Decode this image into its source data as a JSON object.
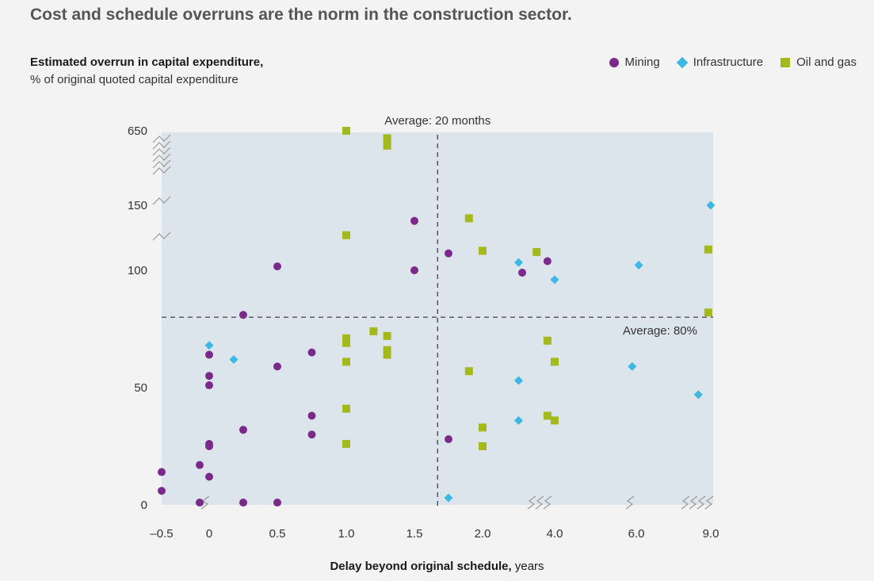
{
  "headline": "Cost and schedule overruns are the norm in the construction sector.",
  "chart_data": {
    "type": "scatter",
    "ylabel": "Estimated overrun in capital expenditure,",
    "ylabel_sub": "% of original quoted capital expenditure",
    "xlabel_bold": "Delay beyond original schedule,",
    "xlabel_unit": " years",
    "x_ticks": [
      "–0.5",
      "0",
      "0.5",
      "1.0",
      "1.5",
      "2.0",
      "4.0",
      "6.0",
      "9.0"
    ],
    "y_ticks": [
      "0",
      "50",
      "100",
      "150",
      "650"
    ],
    "x_axis": "broken scale: –0.5 to 2.0 linear, then breaks before 4.0, 6.0 and 9.0",
    "y_axis": "broken scale: 0 to 100 linear, then breaks before 150 and 650",
    "legend_position": "top-right",
    "average_x_label": "Average: 20 months",
    "average_x_years": 1.67,
    "average_y_label": "Average: 80%",
    "average_y_pct": 80,
    "series": [
      {
        "name": "Mining",
        "marker": "circle",
        "color": "#7b2a8c",
        "points": [
          [
            -0.5,
            14
          ],
          [
            -0.5,
            6
          ],
          [
            -0.1,
            17
          ],
          [
            -0.1,
            1
          ],
          [
            0,
            64
          ],
          [
            0,
            55
          ],
          [
            0,
            51
          ],
          [
            0,
            26
          ],
          [
            0,
            25
          ],
          [
            0,
            12
          ],
          [
            0.25,
            81
          ],
          [
            0.25,
            32
          ],
          [
            0.25,
            1
          ],
          [
            0.5,
            103
          ],
          [
            0.5,
            59
          ],
          [
            0.5,
            1
          ],
          [
            0.75,
            65
          ],
          [
            0.75,
            38
          ],
          [
            0.75,
            30
          ],
          [
            1.5,
            138
          ],
          [
            1.5,
            100
          ],
          [
            1.75,
            113
          ],
          [
            1.75,
            28
          ],
          [
            3.1,
            99
          ],
          [
            3.8,
            107
          ]
        ]
      },
      {
        "name": "Infrastructure",
        "marker": "diamond",
        "color": "#3db7e4",
        "points": [
          [
            0,
            68
          ],
          [
            0.18,
            62
          ],
          [
            1.75,
            3
          ],
          [
            3.0,
            106
          ],
          [
            3.0,
            53
          ],
          [
            3.0,
            36
          ],
          [
            4.0,
            96
          ],
          [
            5.9,
            59
          ],
          [
            6.1,
            104
          ],
          [
            8.5,
            47
          ],
          [
            9.0,
            150
          ]
        ]
      },
      {
        "name": "Oil and gas",
        "marker": "square",
        "color": "#a4b91c",
        "points": [
          [
            1.0,
            650
          ],
          [
            1.0,
            127
          ],
          [
            1.0,
            71
          ],
          [
            1.0,
            69
          ],
          [
            1.0,
            61
          ],
          [
            1.0,
            41
          ],
          [
            1.0,
            26
          ],
          [
            1.2,
            74
          ],
          [
            1.3,
            72
          ],
          [
            1.3,
            66
          ],
          [
            1.3,
            64
          ],
          [
            1.3,
            600
          ],
          [
            1.3,
            550
          ],
          [
            1.9,
            140
          ],
          [
            1.9,
            57
          ],
          [
            2.0,
            115
          ],
          [
            2.0,
            33
          ],
          [
            2.0,
            25
          ],
          [
            3.5,
            114
          ],
          [
            3.8,
            70
          ],
          [
            3.8,
            38
          ],
          [
            4.0,
            61
          ],
          [
            4.0,
            36
          ],
          [
            8.9,
            116
          ],
          [
            8.9,
            82
          ]
        ]
      }
    ]
  }
}
